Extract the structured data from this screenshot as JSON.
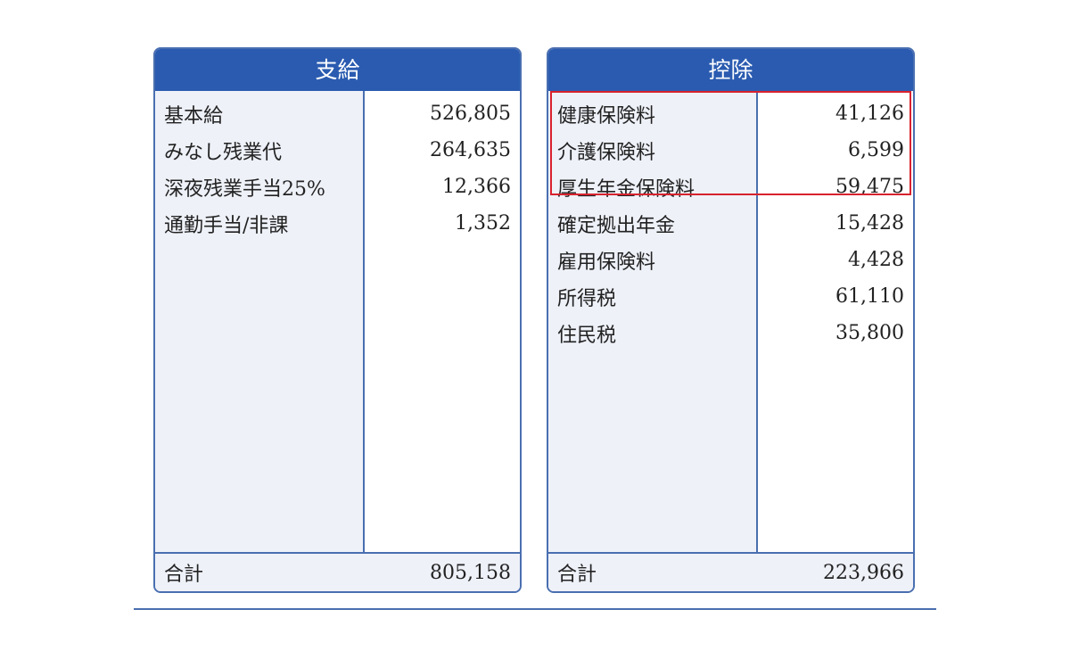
{
  "payments": {
    "title": "支給",
    "items": [
      {
        "label": "基本給",
        "value": "526,805"
      },
      {
        "label": "みなし残業代",
        "value": "264,635"
      },
      {
        "label": "深夜残業手当25%",
        "value": "12,366"
      },
      {
        "label": "通勤手当/非課",
        "value": "1,352"
      }
    ],
    "total_label": "合計",
    "total": "805,158"
  },
  "deductions": {
    "title": "控除",
    "items": [
      {
        "label": "健康保険料",
        "value": "41,126"
      },
      {
        "label": "介護保険料",
        "value": "6,599"
      },
      {
        "label": "厚生年金保険料",
        "value": "59,475"
      },
      {
        "label": "確定拠出年金",
        "value": "15,428"
      },
      {
        "label": "雇用保険料",
        "value": "4,428"
      },
      {
        "label": "所得税",
        "value": "61,110"
      },
      {
        "label": "住民税",
        "value": "35,800"
      }
    ],
    "total_label": "合計",
    "total": "223,966"
  },
  "colors": {
    "header": "#2a5bb0",
    "highlight": "#d8222e"
  }
}
